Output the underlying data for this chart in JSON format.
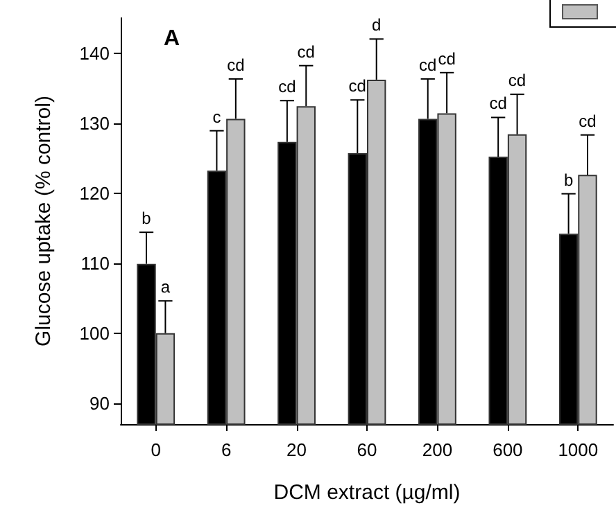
{
  "chart_data": {
    "type": "bar",
    "xlabel": "DCM extract (µg/ml)",
    "ylabel": "Glucose uptake (% control)",
    "categories": [
      "0",
      "6",
      "20",
      "60",
      "200",
      "600",
      "1000"
    ],
    "series": [
      {
        "color": "#000000",
        "values": [
          109.9,
          123.2,
          127.3,
          125.7,
          130.6,
          125.2,
          114.2
        ],
        "errors": [
          [
            109.9,
            114.4
          ],
          [
            123.2,
            128.9
          ],
          [
            127.3,
            133.2
          ],
          [
            125.7,
            133.3
          ],
          [
            130.6,
            136.3
          ],
          [
            125.2,
            130.8
          ],
          [
            114.2,
            119.9
          ]
        ]
      },
      {
        "color": "#c0c0c0",
        "values": [
          100,
          130.6,
          132.4,
          136.2,
          131.4,
          128.4,
          122.6
        ],
        "errors": [
          [
            100,
            104.6
          ],
          [
            130.6,
            136.3
          ],
          [
            132.4,
            138.2
          ],
          [
            136.2,
            142.0
          ],
          [
            131.4,
            137.2
          ],
          [
            128.4,
            134.1
          ],
          [
            122.6,
            128.3
          ]
        ]
      }
    ],
    "ylim": [
      87,
      145
    ],
    "yticks": [
      90,
      100,
      110,
      120,
      130,
      140
    ],
    "grid": false,
    "annotations": [
      "A",
      {
        "text": "b",
        "x": "0",
        "y": 114.4
      },
      {
        "text": "a",
        "x": "0",
        "y": 104.6
      },
      {
        "text": "c",
        "x": "6",
        "y": 128.9
      },
      {
        "text": "cd",
        "x": "6",
        "y": 136.3
      },
      {
        "text": "cd",
        "x": "20",
        "y": 133.2
      },
      {
        "text": "cd",
        "x": "20",
        "y": 138.2
      },
      {
        "text": "cd",
        "x": "60",
        "y": 133.3
      },
      {
        "text": "d",
        "x": "60",
        "y": 142.0
      },
      {
        "text": "cd",
        "x": "200",
        "y": 136.3
      },
      {
        "text": "cd",
        "x": "200",
        "y": 137.2
      },
      {
        "text": "cd",
        "x": "600",
        "y": 130.8
      },
      {
        "text": "cd",
        "x": "600",
        "y": 134.1
      },
      {
        "text": "b",
        "x": "1000",
        "y": 119.9
      },
      {
        "text": "cd",
        "x": "1000",
        "y": 128.3
      }
    ]
  }
}
